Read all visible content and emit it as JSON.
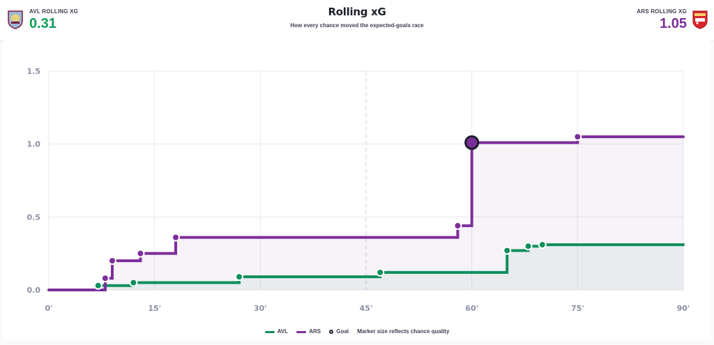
{
  "header": {
    "title": "Rolling xG",
    "subtitle": "How every chance moved the expected-goals race",
    "home": {
      "label": "AVL ROLLING XG",
      "value": "0.31"
    },
    "away": {
      "label": "ARS ROLLING XG",
      "value": "1.05"
    }
  },
  "colors": {
    "home": "#0f8f5c",
    "away": "#7b2d9a",
    "goal_ring": "#1d1f2b",
    "grid": "#e8e9ee",
    "halftime_line": "#c9ccd6"
  },
  "legend": {
    "home": "AVL",
    "away": "ARS",
    "goal": "Goal",
    "note": "Marker size reflects chance quality"
  },
  "chart_data": {
    "type": "line",
    "step": true,
    "title": "Rolling xG",
    "subtitle": "How every chance moved the expected-goals race",
    "xlim": [
      0,
      90
    ],
    "ylim": [
      0,
      1.5
    ],
    "x_ticks": [
      0,
      15,
      30,
      45,
      60,
      75,
      90
    ],
    "x_tick_labels": [
      "0'",
      "15'",
      "30'",
      "45'",
      "60'",
      "75'",
      "90'"
    ],
    "y_ticks": [
      0,
      0.5,
      1.0,
      1.5
    ],
    "y_tick_labels": [
      "0.0",
      "0.5",
      "1.0",
      "1.5"
    ],
    "halftime_marker": 45,
    "grid": true,
    "legend_position": "bottom",
    "series": [
      {
        "name": "AVL",
        "end_minute": 90,
        "shots": [
          {
            "minute": 7,
            "cumulative_xg": 0.03,
            "goal": false
          },
          {
            "minute": 12,
            "cumulative_xg": 0.05,
            "goal": false
          },
          {
            "minute": 27,
            "cumulative_xg": 0.09,
            "goal": false
          },
          {
            "minute": 47,
            "cumulative_xg": 0.12,
            "goal": false
          },
          {
            "minute": 65,
            "cumulative_xg": 0.27,
            "goal": false
          },
          {
            "minute": 68,
            "cumulative_xg": 0.3,
            "goal": false
          },
          {
            "minute": 70,
            "cumulative_xg": 0.31,
            "goal": false
          }
        ]
      },
      {
        "name": "ARS",
        "end_minute": 90,
        "shots": [
          {
            "minute": 8,
            "cumulative_xg": 0.08,
            "goal": false
          },
          {
            "minute": 9,
            "cumulative_xg": 0.2,
            "goal": false
          },
          {
            "minute": 13,
            "cumulative_xg": 0.25,
            "goal": false
          },
          {
            "minute": 18,
            "cumulative_xg": 0.36,
            "goal": false
          },
          {
            "minute": 58,
            "cumulative_xg": 0.44,
            "goal": false
          },
          {
            "minute": 60,
            "cumulative_xg": 1.01,
            "goal": true
          },
          {
            "minute": 75,
            "cumulative_xg": 1.05,
            "goal": false
          }
        ]
      }
    ]
  }
}
